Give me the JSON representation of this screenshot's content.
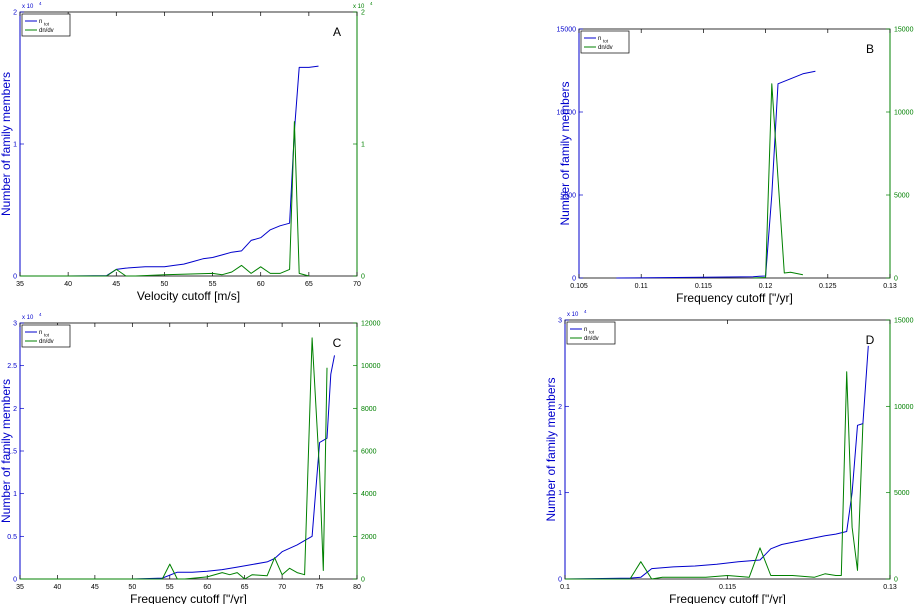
{
  "chart_data": [
    {
      "type": "line",
      "panel_label": "A",
      "xlabel": "Velocity cutoff [m/s]",
      "ylabel": "Number of family members",
      "xlim": [
        35,
        70
      ],
      "xticks": [
        "35",
        "40",
        "45",
        "50",
        "55",
        "60",
        "65",
        "70"
      ],
      "ylim_left": [
        0,
        2
      ],
      "yticks_left": [
        "0",
        "1",
        "2"
      ],
      "left_multiplier": "x 10",
      "left_multiplier_exp": "4",
      "ylim_right": [
        0,
        2
      ],
      "yticks_right": [
        "0",
        "1",
        "2"
      ],
      "right_multiplier": "x 10",
      "right_multiplier_exp": "4",
      "legend_position": "top-left",
      "series": [
        {
          "name": "n",
          "name_sub": "tot",
          "axis": "left",
          "color": "#0000cc",
          "x": [
            35,
            40,
            44,
            45,
            46,
            48,
            50,
            51,
            52,
            53,
            54,
            55,
            56,
            57,
            58,
            59,
            60,
            61,
            62,
            63,
            63.5,
            64,
            65,
            66
          ],
          "y": [
            0,
            0,
            0.003,
            0.05,
            0.06,
            0.07,
            0.07,
            0.08,
            0.09,
            0.11,
            0.13,
            0.14,
            0.16,
            0.18,
            0.19,
            0.27,
            0.29,
            0.35,
            0.38,
            0.4,
            1.1,
            1.58,
            1.58,
            1.59
          ]
        },
        {
          "name": "dn/dv",
          "axis": "right",
          "color": "#008000",
          "x": [
            35,
            40,
            44,
            45,
            46,
            47,
            50,
            55,
            56,
            57,
            58,
            59,
            60,
            61,
            62,
            63,
            63.5,
            64,
            65
          ],
          "y": [
            0,
            0,
            0,
            0.05,
            0,
            0,
            0.01,
            0.02,
            0.01,
            0.03,
            0.08,
            0.02,
            0.07,
            0.02,
            0.02,
            0.05,
            1.17,
            0.02,
            0
          ]
        }
      ]
    },
    {
      "type": "line",
      "panel_label": "B",
      "xlabel": "Frequency cutoff [\"/yr]",
      "ylabel": "Number of family members",
      "xlim": [
        0.105,
        0.13
      ],
      "xticks": [
        "0.105",
        "0.11",
        "0.115",
        "0.12",
        "0.125",
        "0.13"
      ],
      "ylim_left": [
        0,
        15000
      ],
      "yticks_left": [
        "0",
        "5000",
        "10000",
        "15000"
      ],
      "ylim_right": [
        0,
        15000
      ],
      "yticks_right": [
        "0",
        "5000",
        "10000",
        "15000"
      ],
      "legend_position": "top-left",
      "series": [
        {
          "name": "n",
          "name_sub": "tot",
          "axis": "left",
          "color": "#0000cc",
          "x": [
            0.108,
            0.115,
            0.119,
            0.1195,
            0.12,
            0.1205,
            0.121,
            0.122,
            0.123,
            0.124
          ],
          "y": [
            0,
            50,
            80,
            100,
            120,
            5000,
            11700,
            12000,
            12300,
            12450
          ]
        },
        {
          "name": "dn/dv",
          "axis": "right",
          "color": "#008000",
          "x": [
            0.119,
            0.1195,
            0.12,
            0.1205,
            0.121,
            0.1215,
            0.122,
            0.123
          ],
          "y": [
            0,
            20,
            30,
            11700,
            6000,
            300,
            350,
            200
          ]
        }
      ]
    },
    {
      "type": "line",
      "panel_label": "C",
      "xlabel": "Frequency cutoff [\"/yr]",
      "ylabel": "Number of family members",
      "xlim": [
        35,
        80
      ],
      "xticks": [
        "35",
        "40",
        "45",
        "50",
        "55",
        "60",
        "65",
        "70",
        "75",
        "80"
      ],
      "ylim_left": [
        0,
        3
      ],
      "yticks_left": [
        "0",
        "0.5",
        "1",
        "1.5",
        "2",
        "2.5",
        "3"
      ],
      "left_multiplier": "x 10",
      "left_multiplier_exp": "4",
      "ylim_right": [
        0,
        12000
      ],
      "yticks_right": [
        "0",
        "2000",
        "4000",
        "6000",
        "8000",
        "10000",
        "12000"
      ],
      "legend_position": "top-left",
      "series": [
        {
          "name": "n",
          "name_sub": "tot",
          "axis": "left",
          "color": "#0000cc",
          "x": [
            35,
            50,
            54,
            56,
            58,
            60,
            62,
            64,
            66,
            68,
            69,
            70,
            71,
            72,
            73,
            74,
            75,
            76,
            76.5,
            77
          ],
          "y": [
            0,
            0,
            0.01,
            0.08,
            0.08,
            0.09,
            0.11,
            0.14,
            0.17,
            0.2,
            0.24,
            0.32,
            0.36,
            0.4,
            0.45,
            0.5,
            1.6,
            1.65,
            2.4,
            2.62
          ]
        },
        {
          "name": "dn/dv",
          "axis": "right",
          "color": "#008000",
          "x": [
            35,
            54,
            55,
            56,
            57,
            60,
            62,
            63,
            64,
            65,
            66,
            68,
            69,
            70,
            71,
            72,
            73,
            74,
            75,
            75.5,
            76
          ],
          "y": [
            0,
            0,
            700,
            0,
            0,
            100,
            300,
            200,
            300,
            0,
            200,
            150,
            1000,
            200,
            500,
            300,
            200,
            11300,
            5000,
            400,
            9900
          ]
        }
      ]
    },
    {
      "type": "line",
      "panel_label": "D",
      "xlabel": "Frequency cutoff [\"/yr]",
      "ylabel": "Number of family members",
      "xlim": [
        0.1,
        0.13
      ],
      "xticks": [
        "0.1",
        "0.115",
        "0.13"
      ],
      "ylim_left": [
        0,
        3
      ],
      "yticks_left": [
        "0",
        "1",
        "2",
        "3"
      ],
      "left_multiplier": "x 10",
      "left_multiplier_exp": "4",
      "ylim_right": [
        0,
        15000
      ],
      "yticks_right": [
        "0",
        "5000",
        "10000",
        "15000"
      ],
      "legend_position": "top-left",
      "series": [
        {
          "name": "n",
          "name_sub": "tot",
          "axis": "left",
          "color": "#0000cc",
          "x": [
            0.1,
            0.106,
            0.107,
            0.108,
            0.109,
            0.11,
            0.112,
            0.114,
            0.116,
            0.118,
            0.119,
            0.12,
            0.122,
            0.124,
            0.125,
            0.126,
            0.1265,
            0.127,
            0.1275,
            0.128
          ],
          "y": [
            0,
            0.01,
            0.02,
            0.12,
            0.13,
            0.14,
            0.15,
            0.17,
            0.2,
            0.22,
            0.35,
            0.4,
            0.45,
            0.5,
            0.52,
            0.55,
            1.0,
            1.78,
            1.8,
            2.7
          ]
        },
        {
          "name": "dn/dv",
          "axis": "right",
          "color": "#008000",
          "x": [
            0.1,
            0.106,
            0.107,
            0.108,
            0.109,
            0.111,
            0.113,
            0.115,
            0.117,
            0.118,
            0.119,
            0.121,
            0.123,
            0.124,
            0.125,
            0.1255,
            0.126,
            0.1265,
            0.127,
            0.1275
          ],
          "y": [
            0,
            0,
            1000,
            0,
            100,
            100,
            100,
            200,
            100,
            1800,
            200,
            200,
            100,
            300,
            200,
            200,
            12000,
            3000,
            500,
            9000
          ]
        }
      ]
    }
  ]
}
